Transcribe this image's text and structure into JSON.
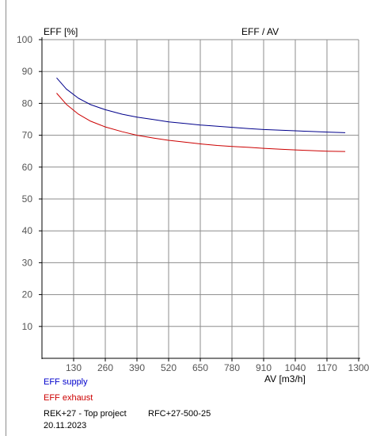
{
  "chart_data": {
    "type": "line",
    "title": "EFF / AV",
    "ylabel": "EFF [%]",
    "xlabel": "AV [m3/h]",
    "xlim": [
      0,
      1300
    ],
    "ylim": [
      0,
      100
    ],
    "x_ticks": [
      130,
      260,
      390,
      520,
      650,
      780,
      910,
      1040,
      1170,
      1300
    ],
    "y_ticks": [
      10,
      20,
      30,
      40,
      50,
      60,
      70,
      80,
      90,
      100
    ],
    "grid": true,
    "series": [
      {
        "name": "EFF supply",
        "color": "#00008b",
        "x": [
          60,
          100,
          150,
          200,
          260,
          330,
          390,
          460,
          520,
          600,
          650,
          720,
          780,
          850,
          910,
          980,
          1040,
          1100,
          1170,
          1245
        ],
        "y": [
          88,
          84.5,
          81.6,
          79.6,
          78.0,
          76.6,
          75.7,
          74.9,
          74.2,
          73.6,
          73.2,
          72.8,
          72.5,
          72.1,
          71.8,
          71.6,
          71.4,
          71.2,
          71.0,
          70.8
        ]
      },
      {
        "name": "EFF exhaust",
        "color": "#cc0000",
        "x": [
          60,
          100,
          150,
          200,
          260,
          330,
          390,
          460,
          520,
          600,
          650,
          720,
          780,
          850,
          910,
          980,
          1040,
          1100,
          1170,
          1245
        ],
        "y": [
          83.2,
          79.7,
          76.6,
          74.4,
          72.6,
          71.1,
          70.0,
          69.1,
          68.4,
          67.7,
          67.3,
          66.8,
          66.5,
          66.2,
          65.9,
          65.6,
          65.4,
          65.2,
          65.0,
          64.9
        ]
      }
    ]
  },
  "legend": {
    "supply": "EFF supply",
    "exhaust": "EFF exhaust"
  },
  "footer": {
    "project": "REK+27  - Top project",
    "model": "RFC+27-500-25",
    "date": "20.11.2023"
  }
}
